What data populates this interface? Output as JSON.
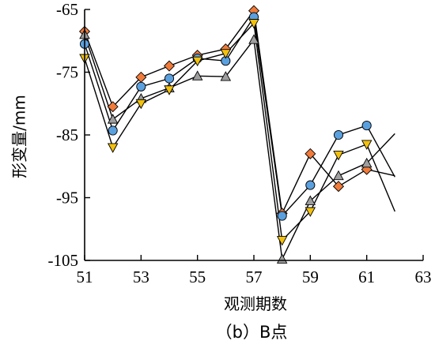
{
  "chart_data": {
    "type": "line",
    "title": "",
    "caption": "（b）B点",
    "xlabel": "观测期数",
    "ylabel": "形变量/mm",
    "xlim": [
      51,
      63
    ],
    "ylim": [
      -105,
      -65
    ],
    "xticks": [
      51,
      53,
      55,
      57,
      59,
      61,
      63
    ],
    "yticks": [
      -65,
      -75,
      -85,
      -95,
      -105
    ],
    "series": [
      {
        "marker": "diamond",
        "color": "#f07b3a",
        "x": [
          51,
          52,
          53,
          54,
          55,
          56,
          57,
          58,
          59,
          60,
          61,
          62
        ],
        "y": [
          -68.5,
          -80.5,
          -75.8,
          -74.0,
          -72.3,
          -71.3,
          -65.2,
          -97.5,
          -88.0,
          -93.2,
          -90.5,
          -91.5
        ]
      },
      {
        "marker": "circle",
        "color": "#5aa0df",
        "x": [
          51,
          52,
          53,
          54,
          55,
          56,
          57,
          58,
          59,
          60,
          61,
          62
        ],
        "y": [
          -70.5,
          -84.3,
          -77.3,
          -76.0,
          -72.8,
          -73.2,
          -66.2,
          -97.9,
          -93.0,
          -85.0,
          -83.5,
          -91.7
        ]
      },
      {
        "marker": "triangle-up",
        "color": "#9e9e9e",
        "x": [
          51,
          52,
          53,
          54,
          55,
          56,
          57,
          58,
          59,
          60,
          61,
          62
        ],
        "y": [
          -69.0,
          -82.5,
          -79.2,
          -77.5,
          -75.6,
          -75.7,
          -69.8,
          -104.8,
          -95.5,
          -91.5,
          -89.5,
          -84.8
        ]
      },
      {
        "marker": "triangle-down",
        "color": "#f2c10f",
        "x": [
          51,
          52,
          53,
          54,
          55,
          56,
          57,
          58,
          59,
          60,
          61,
          62
        ],
        "y": [
          -72.8,
          -87.0,
          -80.0,
          -77.8,
          -73.2,
          -72.0,
          -67.2,
          -101.8,
          -97.2,
          -88.2,
          -86.5,
          -97.2
        ]
      }
    ]
  }
}
